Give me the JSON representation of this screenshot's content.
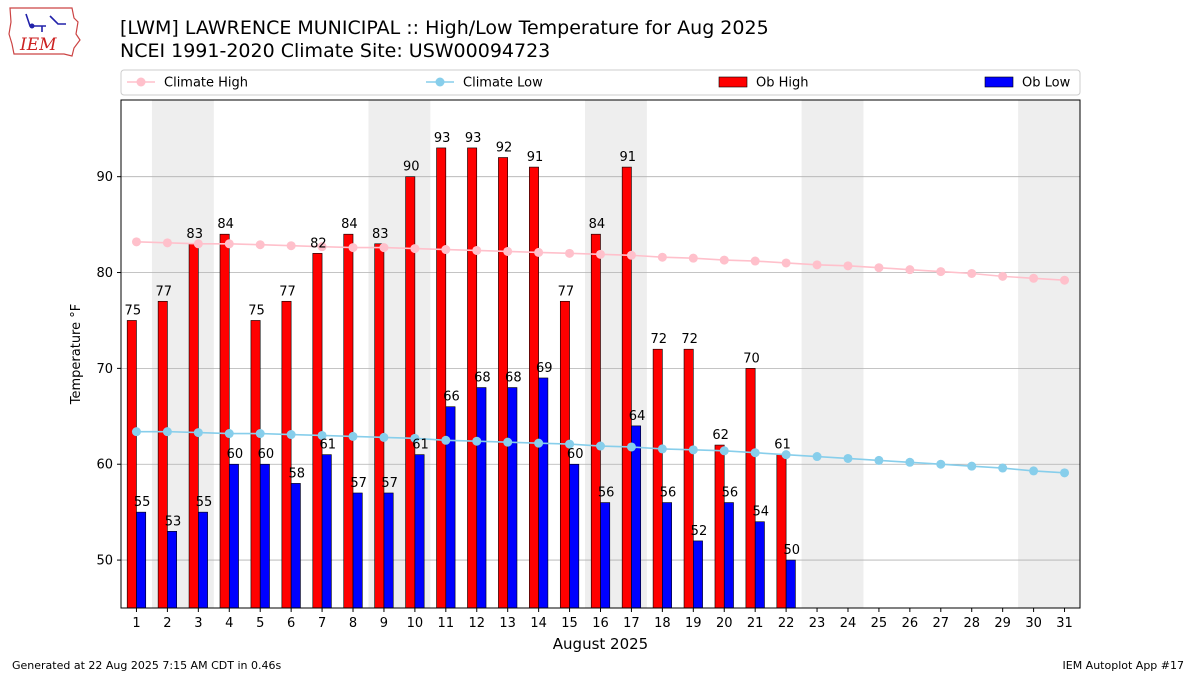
{
  "header": {
    "title_line1": "[LWM] LAWRENCE MUNICIPAL :: High/Low Temperature for Aug 2025",
    "title_line2": "NCEI 1991-2020 Climate Site: USW00094723"
  },
  "logo": {
    "text": "IEM",
    "icon": "iowa-state-outline-icon"
  },
  "footer": {
    "left": "Generated at 22 Aug 2025 7:15 AM CDT in 0.46s",
    "right": "IEM Autoplot App #17"
  },
  "colors": {
    "climate_high": "#ffc0cb",
    "climate_low": "#87ceeb",
    "ob_high": "#ff0000",
    "ob_low": "#0000ff",
    "weekend_shade": "#eeeeee",
    "grid": "#b0b0b0"
  },
  "chart_data": {
    "type": "bar",
    "xlabel": "August 2025",
    "ylabel": "Temperature °F",
    "xlim": [
      0.5,
      31.5
    ],
    "ylim": [
      45,
      98
    ],
    "yticks": [
      50,
      60,
      70,
      80,
      90
    ],
    "grid": "horizontal",
    "legend_placement": "top",
    "days": [
      1,
      2,
      3,
      4,
      5,
      6,
      7,
      8,
      9,
      10,
      11,
      12,
      13,
      14,
      15,
      16,
      17,
      18,
      19,
      20,
      21,
      22,
      23,
      24,
      25,
      26,
      27,
      28,
      29,
      30,
      31
    ],
    "shaded_days": [
      [
        2,
        3
      ],
      [
        9,
        10
      ],
      [
        16,
        17
      ],
      [
        23,
        24
      ],
      [
        30,
        31
      ]
    ],
    "legend": [
      "Climate High",
      "Climate Low",
      "Ob High",
      "Ob Low"
    ],
    "series": [
      {
        "name": "Ob High",
        "kind": "bar",
        "values": [
          75,
          77,
          83,
          84,
          75,
          77,
          82,
          84,
          83,
          90,
          93,
          93,
          92,
          91,
          77,
          84,
          91,
          72,
          72,
          62,
          70,
          61
        ]
      },
      {
        "name": "Ob Low",
        "kind": "bar",
        "values": [
          55,
          53,
          55,
          60,
          60,
          58,
          61,
          57,
          57,
          61,
          66,
          68,
          68,
          69,
          60,
          56,
          64,
          56,
          52,
          56,
          54,
          50
        ]
      },
      {
        "name": "Climate High",
        "kind": "line",
        "values": [
          83.2,
          83.1,
          83.0,
          83.0,
          82.9,
          82.8,
          82.7,
          82.6,
          82.6,
          82.5,
          82.4,
          82.3,
          82.2,
          82.1,
          82.0,
          81.9,
          81.8,
          81.6,
          81.5,
          81.3,
          81.2,
          81.0,
          80.8,
          80.7,
          80.5,
          80.3,
          80.1,
          79.9,
          79.6,
          79.4,
          79.2
        ]
      },
      {
        "name": "Climate Low",
        "kind": "line",
        "values": [
          63.4,
          63.4,
          63.3,
          63.2,
          63.2,
          63.1,
          63.0,
          62.9,
          62.8,
          62.7,
          62.5,
          62.4,
          62.3,
          62.2,
          62.1,
          61.9,
          61.8,
          61.6,
          61.5,
          61.4,
          61.2,
          61.0,
          60.8,
          60.6,
          60.4,
          60.2,
          60.0,
          59.8,
          59.6,
          59.3,
          59.1
        ]
      }
    ]
  }
}
